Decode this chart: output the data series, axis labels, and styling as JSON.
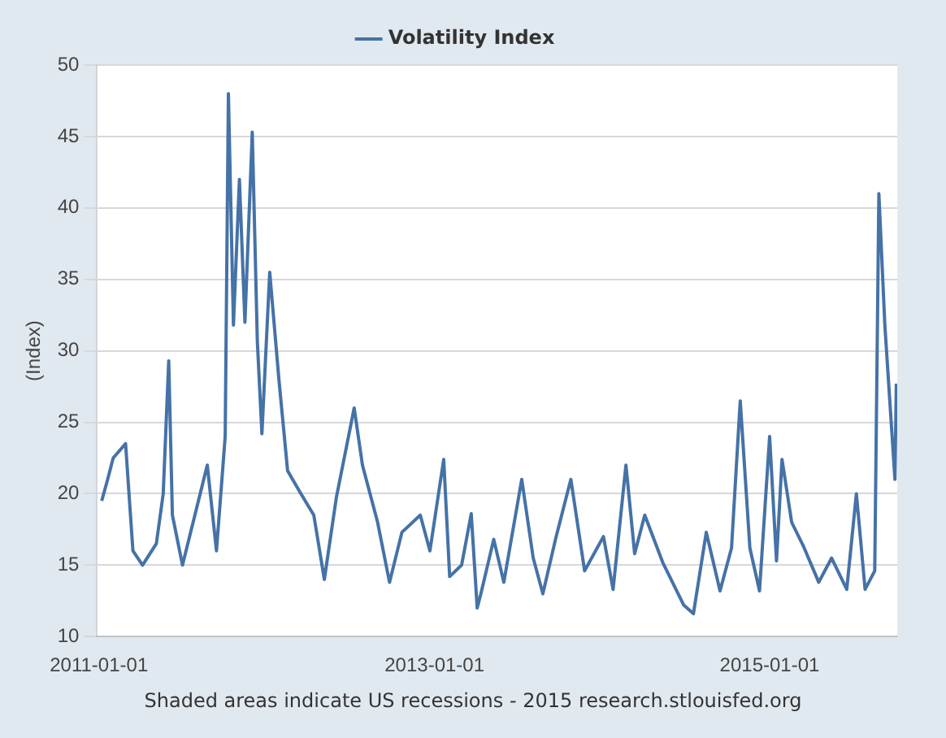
{
  "chart_data": {
    "type": "line",
    "ylabel": "(Index)",
    "legend": "top",
    "grid": "y",
    "marker": "none",
    "line_style": "solid",
    "xlim": [
      "2010-12-28",
      "2015-10-06"
    ],
    "xticks": [
      "2011-01-01",
      "2013-01-01",
      "2015-01-01"
    ],
    "ylim": [
      10,
      50
    ],
    "yticks": [
      10,
      15,
      20,
      25,
      30,
      35,
      40,
      45,
      50
    ],
    "annotations": [
      "Shaded areas indicate US recessions - 2015 research.stlouisfed.org"
    ],
    "series": [
      {
        "name": "Volatility Index",
        "color": "#4572a7",
        "x": [
          "2011-01-07",
          "2011-01-20",
          "2011-02-01",
          "2011-02-28",
          "2011-03-16",
          "2011-04-06",
          "2011-05-06",
          "2011-05-21",
          "2011-06-02",
          "2011-06-10",
          "2011-07-02",
          "2011-08-25",
          "2011-09-14",
          "2011-10-03",
          "2011-10-10",
          "2011-10-21",
          "2011-11-03",
          "2011-11-15",
          "2011-12-01",
          "2011-12-12",
          "2011-12-22",
          "2012-01-08",
          "2012-01-28",
          "2012-02-16",
          "2012-03-16",
          "2012-04-13",
          "2012-05-06",
          "2012-06-01",
          "2012-07-10",
          "2012-07-28",
          "2012-08-30",
          "2012-09-25",
          "2012-10-22",
          "2012-12-01",
          "2012-12-22",
          "2013-01-21",
          "2013-02-03",
          "2013-03-01",
          "2013-03-22",
          "2013-04-04",
          "2013-04-12",
          "2013-05-10",
          "2013-06-01",
          "2013-07-10",
          "2013-08-04",
          "2013-08-25",
          "2013-09-23",
          "2013-10-25",
          "2013-11-24",
          "2014-01-04",
          "2014-01-25",
          "2014-02-22",
          "2014-03-13",
          "2014-04-04",
          "2014-05-13",
          "2014-06-28",
          "2014-07-19",
          "2014-08-16",
          "2014-09-15",
          "2014-10-10",
          "2014-10-29",
          "2014-11-19",
          "2014-12-10",
          "2015-01-01",
          "2015-01-16",
          "2015-01-28",
          "2015-02-18",
          "2015-03-16",
          "2015-04-18",
          "2015-05-16",
          "2015-06-18",
          "2015-07-09",
          "2015-07-28",
          "2015-08-18",
          "2015-08-27",
          "2015-09-09",
          "2015-10-01",
          "2015-10-04"
        ],
        "values": [
          19.5,
          21,
          22.5,
          23.5,
          16,
          15,
          16.5,
          20,
          29.3,
          18.5,
          15,
          22,
          16,
          24,
          48,
          31.8,
          42,
          32,
          45.3,
          30.7,
          24.2,
          35.5,
          28,
          21.6,
          20,
          18.5,
          14,
          19.7,
          26,
          22,
          18,
          13.8,
          17.3,
          18.5,
          16,
          22.4,
          14.2,
          15,
          18.6,
          12,
          13,
          16.8,
          13.8,
          21,
          15.5,
          13,
          17,
          21,
          14.6,
          17,
          13.3,
          22,
          15.8,
          18.5,
          15.2,
          12.2,
          11.6,
          17.3,
          13.2,
          16.2,
          26.5,
          16.2,
          13.2,
          24,
          15.3,
          22.4,
          18,
          16.3,
          13.8,
          15.5,
          13.3,
          20,
          13.3,
          14.6,
          41,
          31.8,
          21,
          27.7
        ]
      }
    ]
  }
}
